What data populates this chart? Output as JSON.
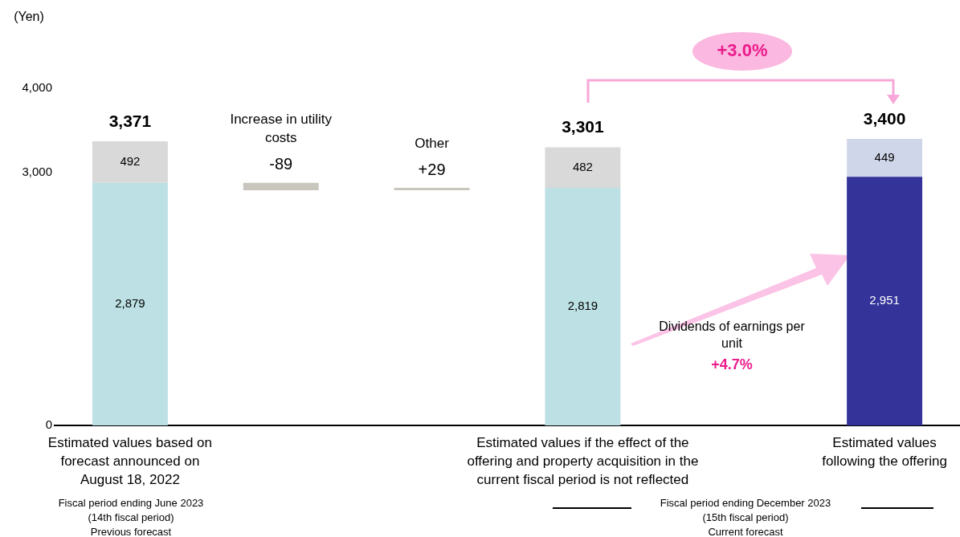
{
  "chart_data": {
    "type": "bar",
    "ylabel": "(Yen)",
    "categories": [
      "Estimated values based on forecast announced on August 18, 2022",
      "Increase in utility costs",
      "Other",
      "Estimated values if the effect of the offering and property acquisition in the current fiscal period is not reflected",
      null,
      "Estimated values following the offering"
    ],
    "series": [
      {
        "colors": [
          "#bce0e3",
          null,
          null,
          "#bce0e3",
          null,
          "#333399"
        ],
        "values": [
          2879,
          null,
          null,
          2819,
          null,
          2951
        ],
        "value_labels": [
          "2,879",
          null,
          null,
          "2,819",
          null,
          "2,951"
        ]
      },
      {
        "colors": [
          "#d9d9d9",
          null,
          null,
          "#d9d9d9",
          null,
          "#d0d6e9"
        ],
        "values": [
          492,
          null,
          null,
          482,
          null,
          449
        ],
        "value_labels": [
          "492",
          null,
          null,
          "482",
          null,
          "449"
        ]
      },
      {
        "color": "#c9c6bd",
        "base": [
          null,
          2879,
          2790,
          null,
          null,
          null
        ],
        "values": [
          null,
          -89,
          29,
          null,
          null,
          null
        ],
        "value_labels": [
          null,
          "-89",
          "+29",
          null,
          null,
          null
        ]
      }
    ],
    "stacked": true,
    "totals": [
      "3,371",
      null,
      null,
      "3,301",
      null,
      "3,400"
    ],
    "ylim": [
      0,
      4000
    ],
    "yticks": [
      0,
      {
        "value": 3000,
        "label": "3,000"
      },
      {
        "value": 4000,
        "label": "4,000"
      }
    ],
    "annotations": [
      "+3.0%",
      "Dividends of earnings per unit",
      "+4.7%",
      "Fiscal period ending June 2023\n(14th fiscal period)\nPrevious forecast",
      "Fiscal period ending December 2023\n(15th fiscal period)\nCurrent forecast"
    ]
  }
}
